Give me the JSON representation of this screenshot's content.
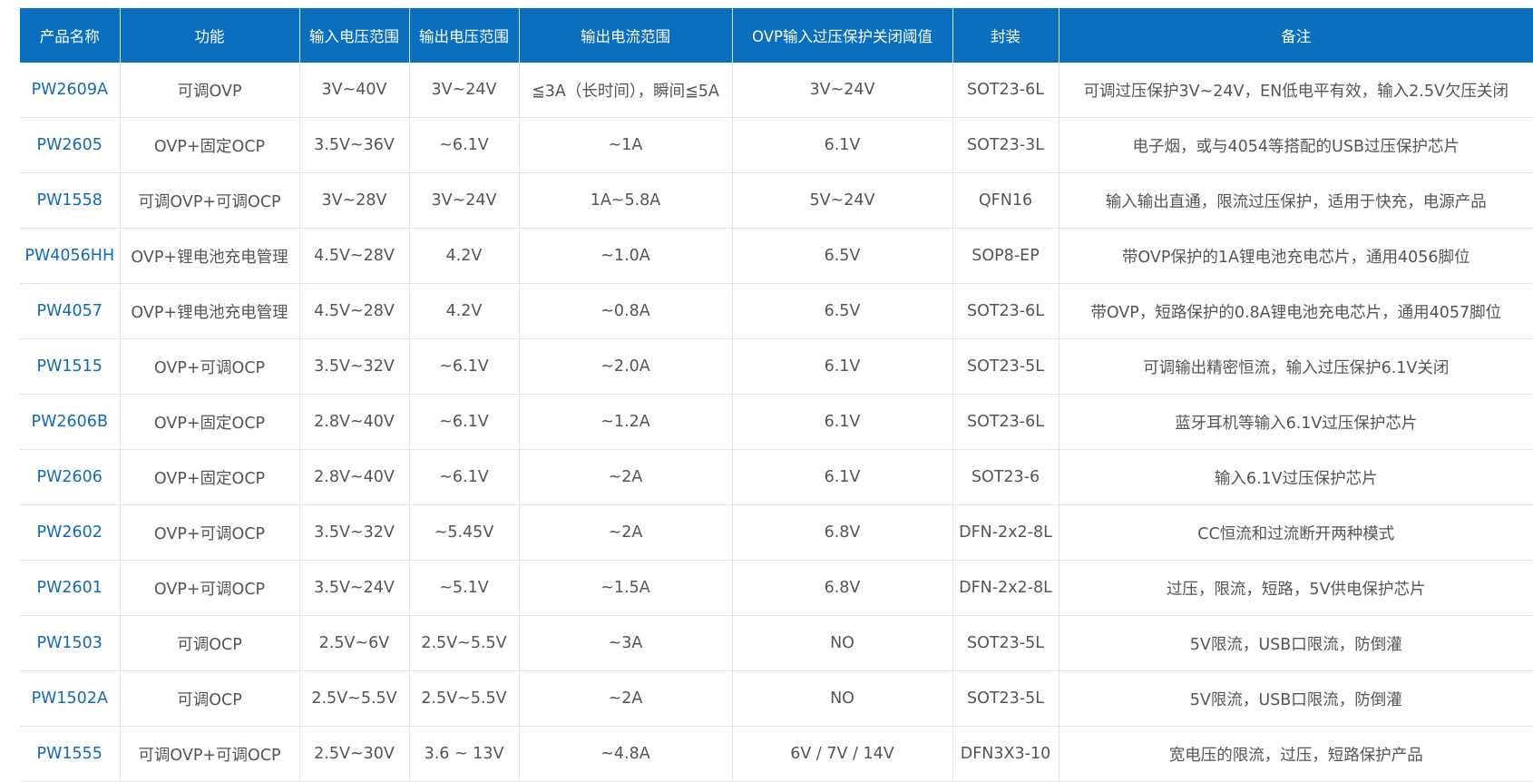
{
  "table": {
    "headers": [
      "产品名称",
      "功能",
      "输入电压范围",
      "输出电压范围",
      "输出电流范围",
      "OVP输入过压保护关闭阈值",
      "封装",
      "备注"
    ],
    "rows": [
      {
        "model": "PW2609A",
        "function": "可调OVP",
        "vin": "3V~40V",
        "vout": "3V~24V",
        "iout": "≦3A（长时间），瞬间≦5A",
        "ovp": "3V~24V",
        "package": "SOT23-6L",
        "note": "可调过压保护3V~24V，EN低电平有效，输入2.5V欠压关闭"
      },
      {
        "model": "PW2605",
        "function": "OVP+固定OCP",
        "vin": "3.5V~36V",
        "vout": "~6.1V",
        "iout": "~1A",
        "ovp": "6.1V",
        "package": "SOT23-3L",
        "note": "电子烟，或与4054等搭配的USB过压保护芯片"
      },
      {
        "model": "PW1558",
        "function": "可调OVP+可调OCP",
        "vin": "3V~28V",
        "vout": "3V~24V",
        "iout": "1A~5.8A",
        "ovp": "5V~24V",
        "package": "QFN16",
        "note": "输入输出直通，限流过压保护，适用于快充，电源产品"
      },
      {
        "model": "PW4056HH",
        "function": "OVP+锂电池充电管理",
        "vin": "4.5V~28V",
        "vout": "4.2V",
        "iout": "~1.0A",
        "ovp": "6.5V",
        "package": "SOP8-EP",
        "note": "带OVP保护的1A锂电池充电芯片，通用4056脚位"
      },
      {
        "model": "PW4057",
        "function": "OVP+锂电池充电管理",
        "vin": "4.5V~28V",
        "vout": "4.2V",
        "iout": "~0.8A",
        "ovp": "6.5V",
        "package": "SOT23-6L",
        "note": "带OVP，短路保护的0.8A锂电池充电芯片，通用4057脚位"
      },
      {
        "model": "PW1515",
        "function": "OVP+可调OCP",
        "vin": "3.5V~32V",
        "vout": "~6.1V",
        "iout": "~2.0A",
        "ovp": "6.1V",
        "package": "SOT23-5L",
        "note": "可调输出精密恒流，输入过压保护6.1V关闭"
      },
      {
        "model": "PW2606B",
        "function": "OVP+固定OCP",
        "vin": "2.8V~40V",
        "vout": "~6.1V",
        "iout": "~1.2A",
        "ovp": "6.1V",
        "package": "SOT23-6L",
        "note": "蓝牙耳机等输入6.1V过压保护芯片"
      },
      {
        "model": "PW2606",
        "function": "OVP+固定OCP",
        "vin": "2.8V~40V",
        "vout": "~6.1V",
        "iout": "~2A",
        "ovp": "6.1V",
        "package": "SOT23-6",
        "note": "输入6.1V过压保护芯片"
      },
      {
        "model": "PW2602",
        "function": "OVP+可调OCP",
        "vin": "3.5V~32V",
        "vout": "~5.45V",
        "iout": "~2A",
        "ovp": "6.8V",
        "package": "DFN-2x2-8L",
        "note": "CC恒流和过流断开两种模式"
      },
      {
        "model": "PW2601",
        "function": "OVP+可调OCP",
        "vin": "3.5V~24V",
        "vout": "~5.1V",
        "iout": "~1.5A",
        "ovp": "6.8V",
        "package": "DFN-2x2-8L",
        "note": "过压，限流，短路，5V供电保护芯片"
      },
      {
        "model": "PW1503",
        "function": "可调OCP",
        "vin": "2.5V~6V",
        "vout": "2.5V~5.5V",
        "iout": "~3A",
        "ovp": "NO",
        "package": "SOT23-5L",
        "note": "5V限流，USB口限流，防倒灌"
      },
      {
        "model": "PW1502A",
        "function": "可调OCP",
        "vin": "2.5V~5.5V",
        "vout": "2.5V~5.5V",
        "iout": "~2A",
        "ovp": "NO",
        "package": "SOT23-5L",
        "note": "5V限流，USB口限流，防倒灌"
      },
      {
        "model": "PW1555",
        "function": "可调OVP+可调OCP",
        "vin": "2.5V~30V",
        "vout": "3.6 ~ 13V",
        "iout": "~4.8A",
        "ovp": "6V / 7V / 14V",
        "package": "DFN3X3-10",
        "note": "宽电压的限流，过压，短路保护产品"
      }
    ]
  },
  "colors": {
    "header_bg": "#0b6fbf",
    "header_text": "#ffffff",
    "model_link": "#1469b6",
    "cell_text": "#555555"
  }
}
